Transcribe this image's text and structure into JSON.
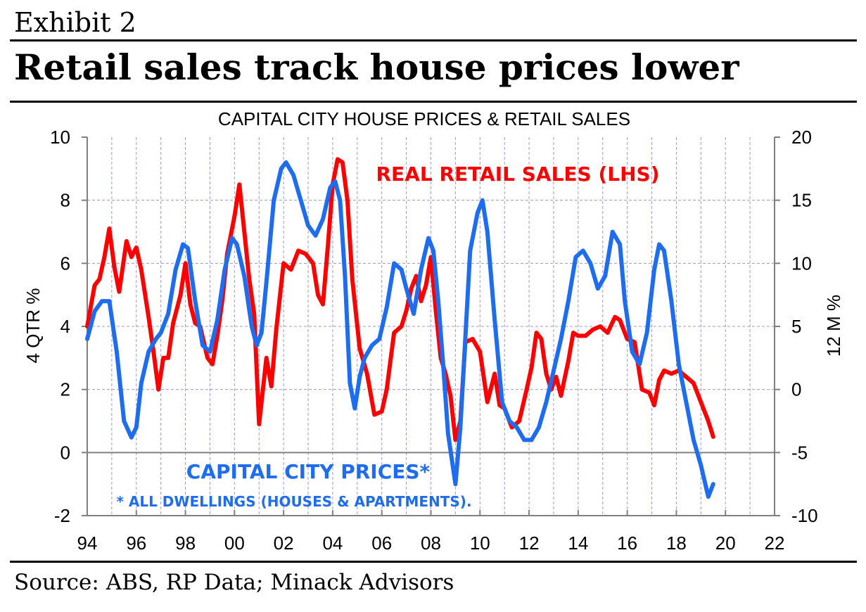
{
  "header": {
    "exhibit": "Exhibit 2",
    "headline": "Retail sales track house prices lower"
  },
  "source": "Source: ABS, RP Data; Minack Advisors",
  "colors": {
    "retail": "#ff0000",
    "prices": "#1e6cf0",
    "grid": "#9999cc",
    "axis": "#808080"
  },
  "chart_data": {
    "type": "line",
    "title": "CAPITAL CITY HOUSE PRICES & RETAIL SALES",
    "ylabel_left": "4 QTR %",
    "ylabel_right": "12 M %",
    "xlim": [
      1994,
      2022
    ],
    "ylim_left": [
      -2,
      10
    ],
    "ylim_right": [
      -10,
      20
    ],
    "x_ticks": [
      "94",
      "96",
      "98",
      "00",
      "02",
      "04",
      "06",
      "08",
      "10",
      "12",
      "14",
      "16",
      "18",
      "20",
      "22"
    ],
    "y_left_ticks": [
      "10",
      "8",
      "6",
      "4",
      "2",
      "0",
      "-2"
    ],
    "y_right_ticks": [
      "20",
      "15",
      "10",
      "5",
      "0",
      "-5",
      "-10"
    ],
    "grid": true,
    "annotations": {
      "retail": "REAL RETAIL SALES (LHS)",
      "prices": "CAPITAL CITY PRICES*",
      "footnote": "* ALL DWELLINGS (HOUSES & APARTMENTS)."
    },
    "series": [
      {
        "name": "REAL RETAIL SALES (LHS)",
        "axis": "left",
        "x": [
          1994.0,
          1994.3,
          1994.5,
          1994.7,
          1994.9,
          1995.1,
          1995.3,
          1995.6,
          1995.8,
          1996.0,
          1996.2,
          1996.5,
          1996.7,
          1996.9,
          1997.1,
          1997.3,
          1997.5,
          1997.8,
          1998.0,
          1998.2,
          1998.4,
          1998.6,
          1998.9,
          1999.1,
          1999.3,
          1999.5,
          1999.7,
          2000.0,
          2000.2,
          2000.4,
          2000.6,
          2000.8,
          2001.0,
          2001.3,
          2001.5,
          2001.7,
          2002.0,
          2002.3,
          2002.6,
          2002.9,
          2003.2,
          2003.4,
          2003.6,
          2003.8,
          2004.0,
          2004.2,
          2004.4,
          2004.6,
          2004.8,
          2005.1,
          2005.4,
          2005.7,
          2006.0,
          2006.2,
          2006.5,
          2006.8,
          2007.0,
          2007.2,
          2007.4,
          2007.6,
          2007.8,
          2008.0,
          2008.2,
          2008.4,
          2008.6,
          2008.8,
          2009.0,
          2009.2,
          2009.4,
          2009.7,
          2010.0,
          2010.3,
          2010.6,
          2010.8,
          2011.0,
          2011.3,
          2011.6,
          2011.9,
          2012.1,
          2012.3,
          2012.5,
          2012.7,
          2012.9,
          2013.1,
          2013.3,
          2013.6,
          2013.8,
          2014.0,
          2014.3,
          2014.6,
          2014.9,
          2015.2,
          2015.5,
          2015.7,
          2016.0,
          2016.3,
          2016.6,
          2016.9,
          2017.1,
          2017.3,
          2017.5,
          2017.8,
          2018.1,
          2018.4,
          2018.7,
          2019.0,
          2019.3,
          2019.5
        ],
        "values": [
          4.0,
          5.3,
          5.5,
          6.2,
          7.1,
          5.9,
          5.1,
          6.7,
          6.2,
          6.5,
          5.8,
          4.3,
          3.2,
          2.0,
          3.0,
          3.0,
          4.1,
          5.0,
          6.0,
          4.7,
          4.1,
          4.0,
          3.0,
          2.8,
          3.7,
          4.8,
          6.3,
          7.5,
          8.5,
          7.0,
          5.5,
          4.4,
          0.9,
          3.0,
          2.1,
          3.9,
          6.0,
          5.8,
          6.4,
          6.3,
          6.0,
          5.0,
          4.7,
          6.5,
          8.5,
          9.3,
          9.2,
          8.0,
          5.5,
          3.3,
          2.5,
          1.2,
          1.3,
          2.0,
          3.8,
          4.0,
          4.5,
          5.2,
          5.6,
          4.8,
          5.3,
          6.2,
          4.5,
          3.0,
          2.5,
          1.8,
          0.4,
          1.0,
          3.5,
          3.6,
          3.2,
          1.6,
          2.5,
          1.5,
          1.4,
          0.8,
          1.0,
          2.0,
          2.7,
          3.8,
          3.6,
          2.5,
          2.0,
          2.4,
          1.8,
          2.9,
          3.8,
          3.7,
          3.7,
          3.9,
          4.0,
          3.8,
          4.3,
          4.2,
          3.6,
          3.5,
          2.0,
          1.9,
          1.5,
          2.3,
          2.6,
          2.5,
          2.6,
          2.4,
          2.2,
          1.6,
          1.0,
          0.5
        ]
      },
      {
        "name": "CAPITAL CITY PRICES*",
        "axis": "right",
        "x": [
          1994.0,
          1994.3,
          1994.6,
          1994.9,
          1995.2,
          1995.5,
          1995.8,
          1996.0,
          1996.2,
          1996.5,
          1996.8,
          1997.0,
          1997.3,
          1997.6,
          1997.9,
          1998.1,
          1998.4,
          1998.7,
          1999.0,
          1999.3,
          1999.6,
          1999.9,
          2000.1,
          2000.4,
          2000.7,
          2000.9,
          2001.1,
          2001.3,
          2001.6,
          2001.9,
          2002.1,
          2002.4,
          2002.7,
          2003.0,
          2003.3,
          2003.6,
          2003.9,
          2004.1,
          2004.3,
          2004.5,
          2004.7,
          2004.9,
          2005.1,
          2005.3,
          2005.6,
          2005.9,
          2006.2,
          2006.5,
          2006.8,
          2007.0,
          2007.3,
          2007.6,
          2007.9,
          2008.1,
          2008.3,
          2008.5,
          2008.7,
          2009.0,
          2009.2,
          2009.4,
          2009.6,
          2009.9,
          2010.1,
          2010.3,
          2010.6,
          2010.9,
          2011.2,
          2011.5,
          2011.8,
          2012.1,
          2012.4,
          2012.7,
          2013.0,
          2013.3,
          2013.6,
          2013.9,
          2014.2,
          2014.5,
          2014.8,
          2015.1,
          2015.4,
          2015.7,
          2015.9,
          2016.2,
          2016.5,
          2016.8,
          2017.1,
          2017.3,
          2017.5,
          2017.8,
          2018.1,
          2018.4,
          2018.7,
          2019.0,
          2019.3,
          2019.5
        ],
        "values": [
          4.0,
          6.2,
          7.0,
          7.0,
          3.0,
          -2.5,
          -3.8,
          -3.0,
          0.5,
          3.0,
          4.0,
          4.5,
          6.0,
          9.5,
          11.5,
          11.2,
          7.0,
          3.5,
          3.0,
          5.5,
          9.5,
          12.0,
          11.5,
          9.0,
          5.0,
          3.5,
          4.5,
          8.5,
          15.0,
          17.5,
          18.0,
          17.0,
          15.0,
          13.0,
          12.2,
          13.5,
          16.0,
          16.5,
          15.0,
          9.0,
          0.5,
          -1.5,
          1.0,
          2.5,
          3.5,
          4.0,
          6.5,
          10.0,
          9.5,
          8.0,
          6.0,
          9.5,
          12.0,
          11.0,
          7.0,
          2.0,
          -3.5,
          -7.5,
          -3.0,
          4.0,
          11.0,
          14.0,
          15.0,
          12.5,
          5.5,
          -1.0,
          -2.5,
          -3.0,
          -4.0,
          -4.0,
          -3.0,
          -1.0,
          1.5,
          4.0,
          7.0,
          10.5,
          11.0,
          10.0,
          8.0,
          9.0,
          12.5,
          11.5,
          7.0,
          3.0,
          2.0,
          4.5,
          9.5,
          11.5,
          11.0,
          7.0,
          2.0,
          -1.0,
          -4.0,
          -6.0,
          -8.5,
          -7.5
        ]
      }
    ]
  }
}
